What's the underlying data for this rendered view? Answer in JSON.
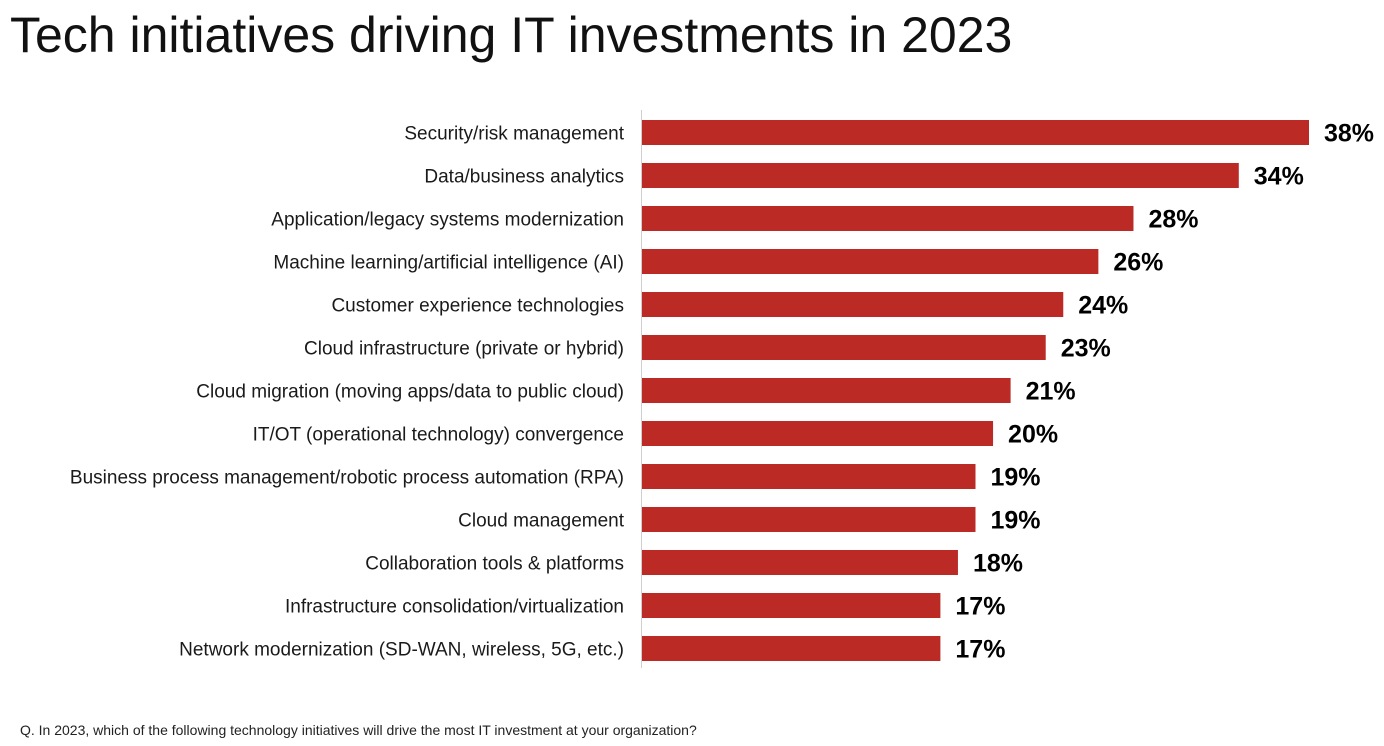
{
  "title": "Tech initiatives driving IT investments in 2023",
  "footnote": "Q. In 2023, which of the following technology initiatives will drive the most IT investment at your organization?",
  "colors": {
    "bar": "#bb2a25",
    "axis": "#cfcfcf"
  },
  "chart_data": {
    "type": "bar",
    "orientation": "horizontal",
    "categories": [
      "Security/risk management",
      "Data/business analytics",
      "Application/legacy systems modernization",
      "Machine learning/artificial intelligence (AI)",
      "Customer experience technologies",
      "Cloud infrastructure (private or hybrid)",
      "Cloud migration (moving apps/data to public cloud)",
      "IT/OT (operational technology) convergence",
      "Business process management/robotic process automation (RPA)",
      "Cloud management",
      "Collaboration tools & platforms",
      "Infrastructure consolidation/virtualization",
      "Network modernization (SD-WAN, wireless, 5G, etc.)"
    ],
    "values": [
      38,
      34,
      28,
      26,
      24,
      23,
      21,
      20,
      19,
      19,
      18,
      17,
      17
    ],
    "value_labels": [
      "38%",
      "34%",
      "28%",
      "26%",
      "24%",
      "23%",
      "21%",
      "20%",
      "19%",
      "19%",
      "18%",
      "17%",
      "17%"
    ],
    "unit": "%",
    "xlim": [
      0,
      38
    ],
    "grid": false,
    "legend": "none"
  }
}
